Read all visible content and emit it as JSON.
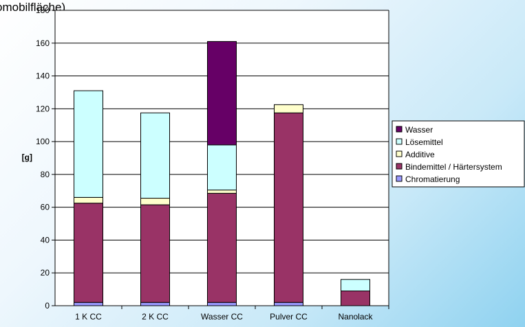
{
  "chart_data": {
    "type": "bar",
    "stacked": true,
    "title": "omobilfläche)",
    "xlabel": "",
    "ylabel": "[g]",
    "ylim": [
      0,
      180
    ],
    "yticks": [
      0,
      20,
      40,
      60,
      80,
      100,
      120,
      140,
      160,
      180
    ],
    "grid": true,
    "legend_position": "right",
    "categories": [
      "1 K CC",
      "2 K CC",
      "Wasser CC",
      "Pulver CC",
      "Nanolack"
    ],
    "series": [
      {
        "name": "Chromatierung",
        "color": "#9999ff",
        "values": [
          2,
          2,
          2,
          2,
          0
        ]
      },
      {
        "name": "Bindemittel / Härtersystem",
        "color": "#993366",
        "values": [
          60.5,
          59.5,
          66.5,
          115.5,
          9
        ]
      },
      {
        "name": "Additive",
        "color": "#ffffcc",
        "values": [
          3.5,
          4,
          2,
          5,
          0
        ]
      },
      {
        "name": "Lösemittel",
        "color": "#ccffff",
        "values": [
          65,
          52,
          27.5,
          0,
          7
        ]
      },
      {
        "name": "Wasser",
        "color": "#660066",
        "values": [
          0,
          0,
          63,
          0,
          0
        ]
      }
    ]
  }
}
